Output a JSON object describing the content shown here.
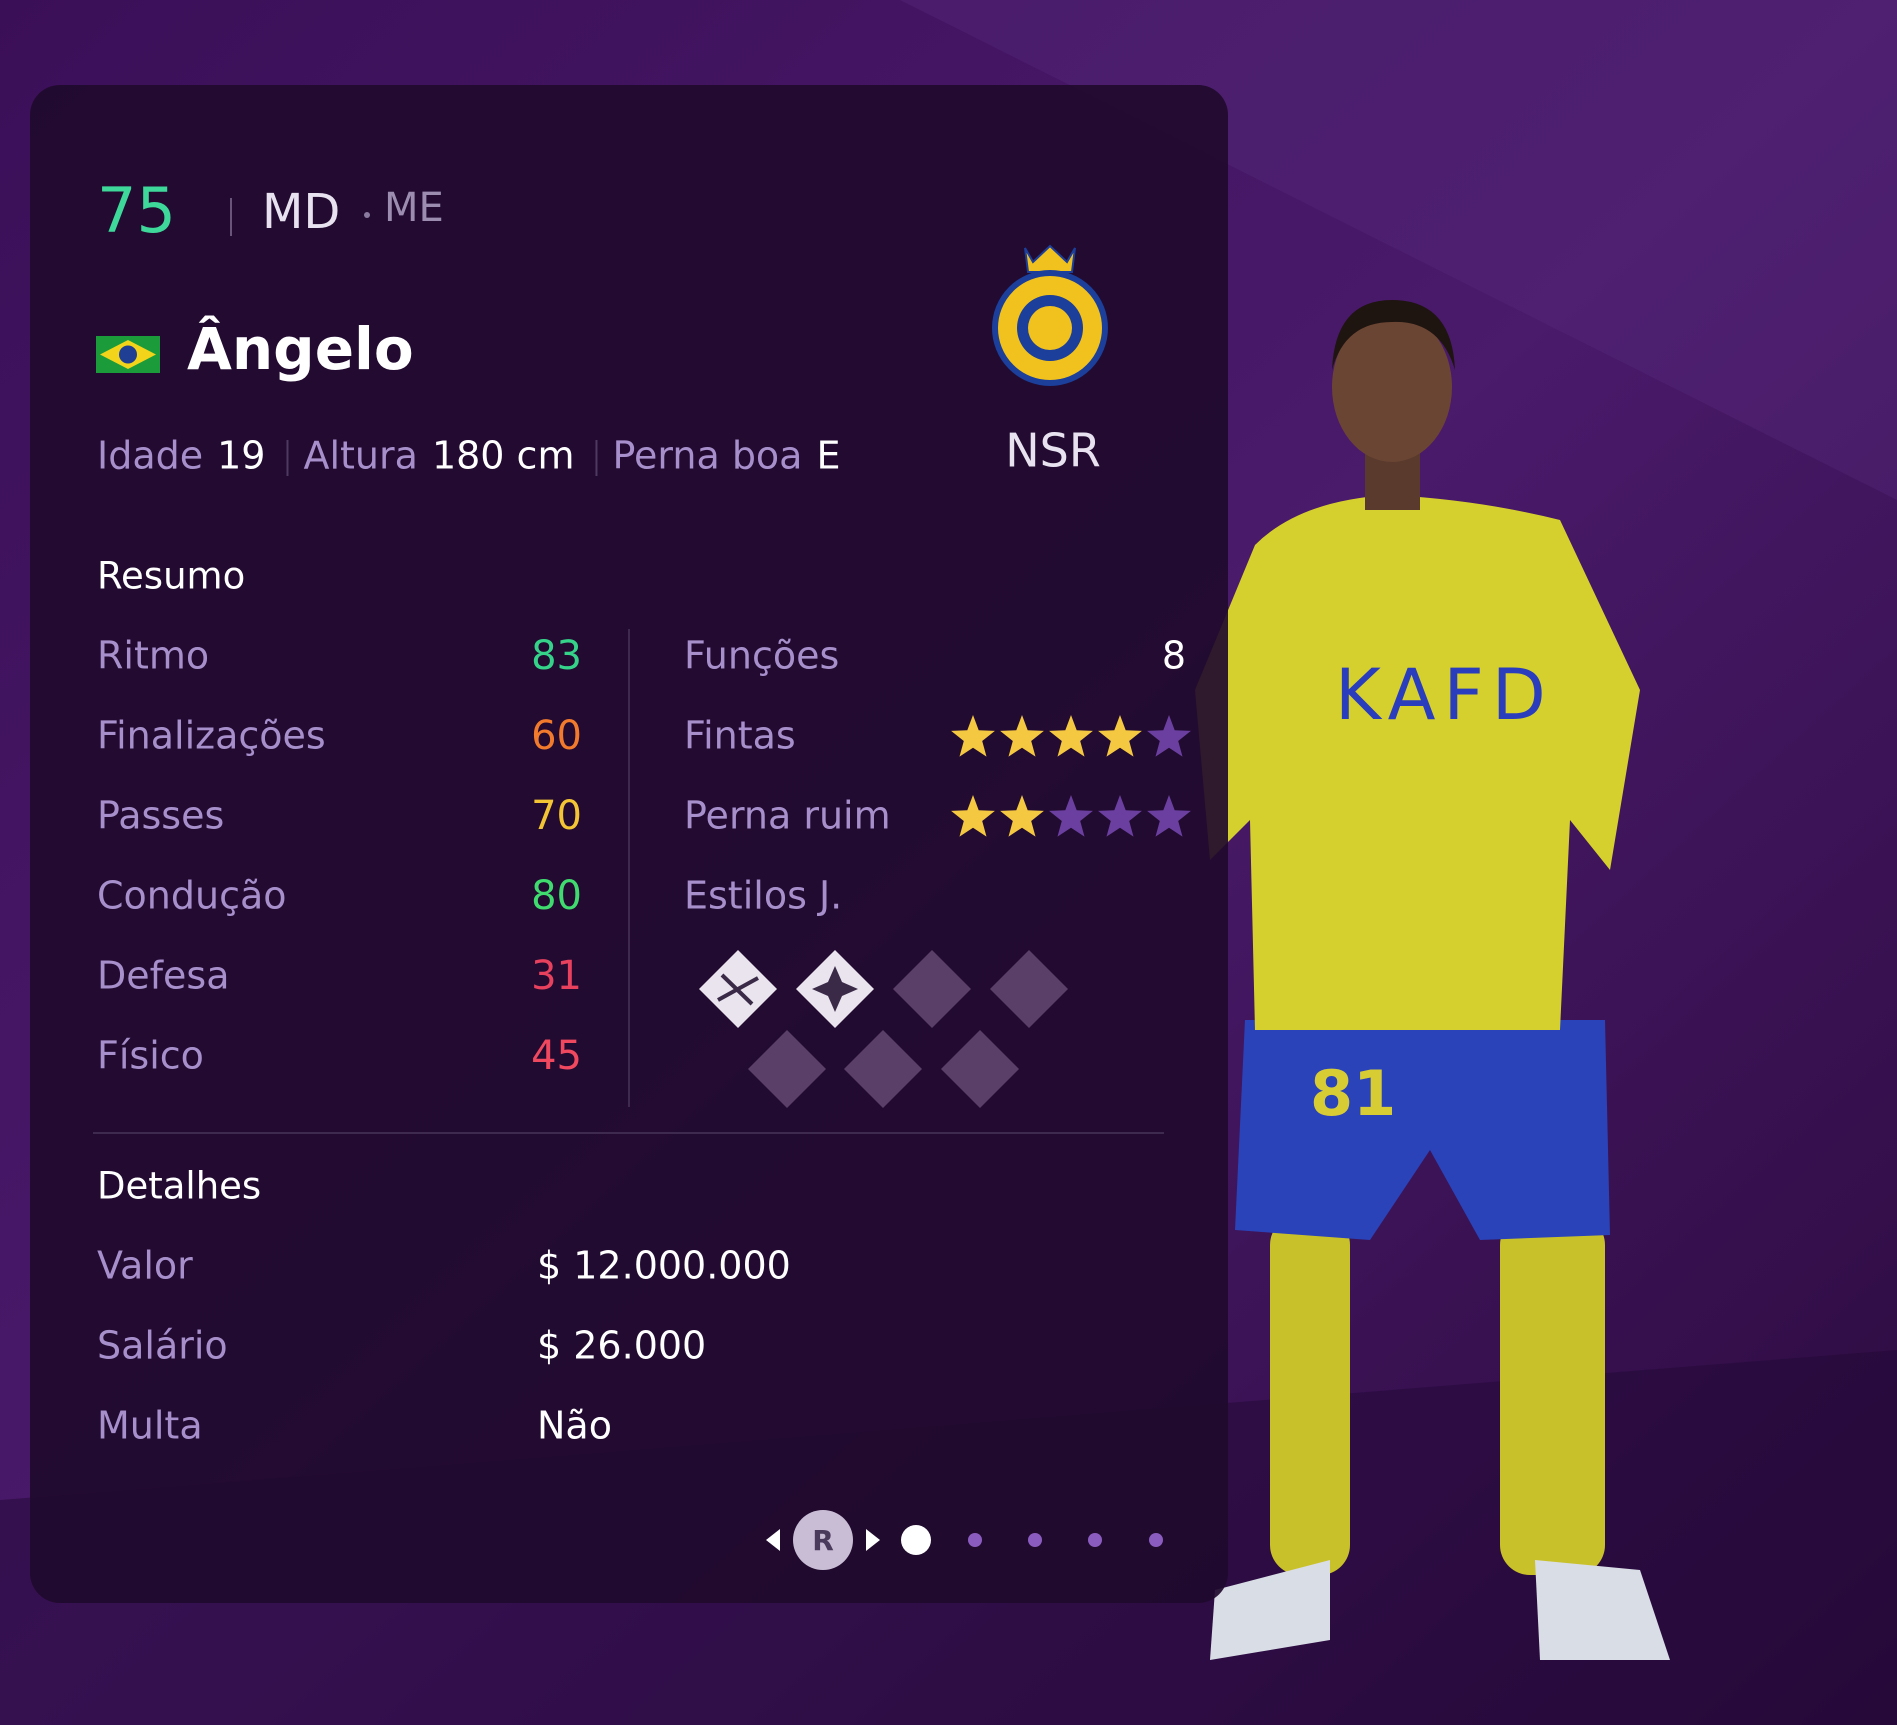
{
  "header": {
    "rating": 75,
    "position": "MD",
    "alt_position": "ME",
    "name": "Ângelo",
    "club": "NSR"
  },
  "info": [
    {
      "label": "Idade",
      "value": "19"
    },
    {
      "label": "Altura",
      "value": "180 cm"
    },
    {
      "label": "Perna boa",
      "value": "E"
    }
  ],
  "summary": {
    "title": "Resumo",
    "stats": [
      {
        "label": "Ritmo",
        "value": 83,
        "color": "#35d38a"
      },
      {
        "label": "Finalizações",
        "value": 60,
        "color": "#f27a2c"
      },
      {
        "label": "Passes",
        "value": 70,
        "color": "#f3c535"
      },
      {
        "label": "Condução",
        "value": 80,
        "color": "#3fdb6e"
      },
      {
        "label": "Defesa",
        "value": 31,
        "color": "#e8415e"
      },
      {
        "label": "Físico",
        "value": 45,
        "color": "#f0485f"
      }
    ]
  },
  "skills": {
    "roles": {
      "label": "Funções",
      "value": 8
    },
    "skill_moves": {
      "label": "Fintas",
      "stars": 4,
      "of": 5
    },
    "weak_foot": {
      "label": "Perna ruim",
      "stars": 2,
      "of": 5
    },
    "playstyles": {
      "label": "Estilos J."
    }
  },
  "details": {
    "title": "Detalhes",
    "rows": [
      {
        "label": "Valor",
        "value": "$ 12.000.000"
      },
      {
        "label": "Salário",
        "value": "$ 26.000"
      },
      {
        "label": "Multa",
        "value": "Não"
      }
    ]
  },
  "nav": {
    "button": "R"
  }
}
